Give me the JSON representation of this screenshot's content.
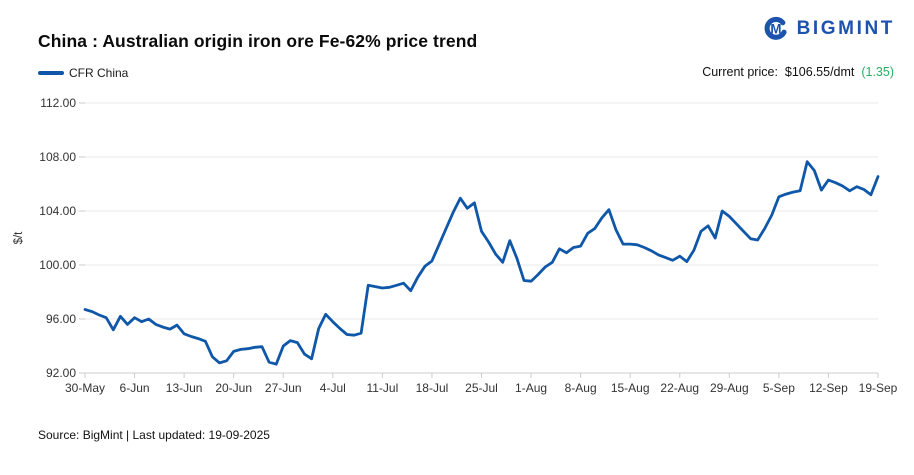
{
  "header": {
    "title": "China : Australian origin iron ore Fe-62% price trend",
    "brand": {
      "name": "BIGMINT",
      "icon": "bigmint-logo-icon",
      "color": "#1d52ad"
    }
  },
  "legend": {
    "series_label": "CFR China",
    "swatch_color": "#0f57a8"
  },
  "current_price": {
    "label": "Current price:",
    "value": "$106.55/dmt",
    "change": "(1.35)",
    "change_color": "#27ae60"
  },
  "chart_data": {
    "type": "line",
    "title": "China : Australian origin iron ore Fe-62% price trend",
    "xlabel": "",
    "ylabel": "$/t",
    "ylim": [
      92,
      112
    ],
    "yticks": [
      92,
      96,
      100,
      104,
      108,
      112
    ],
    "grid": "horizontal",
    "legend_position": "top-left",
    "line_color": "#0f57a8",
    "grid_color": "#e9e9e9",
    "axis_color": "#cccccc",
    "categories": [
      "30-May",
      "6-Jun",
      "13-Jun",
      "20-Jun",
      "27-Jun",
      "4-Jul",
      "11-Jul",
      "18-Jul",
      "25-Jul",
      "1-Aug",
      "8-Aug",
      "15-Aug",
      "22-Aug",
      "29-Aug",
      "5-Sep",
      "12-Sep",
      "19-Sep"
    ],
    "tick_interval": 7,
    "series": [
      {
        "name": "CFR China",
        "values": [
          96.7,
          96.55,
          96.3,
          96.1,
          95.2,
          96.2,
          95.6,
          96.1,
          95.8,
          96.0,
          95.6,
          95.4,
          95.25,
          95.55,
          94.9,
          94.7,
          94.55,
          94.35,
          93.2,
          92.75,
          92.9,
          93.6,
          93.75,
          93.8,
          93.9,
          93.95,
          92.8,
          92.65,
          94.0,
          94.4,
          94.25,
          93.4,
          93.05,
          95.3,
          96.35,
          95.8,
          95.3,
          94.85,
          94.8,
          94.95,
          98.5,
          98.4,
          98.3,
          98.35,
          98.5,
          98.65,
          98.1,
          99.1,
          99.9,
          100.3,
          101.5,
          102.7,
          103.9,
          104.95,
          104.2,
          104.6,
          102.5,
          101.7,
          100.8,
          100.2,
          101.8,
          100.5,
          98.85,
          98.8,
          99.3,
          99.85,
          100.2,
          101.2,
          100.9,
          101.3,
          101.4,
          102.35,
          102.7,
          103.5,
          104.1,
          102.6,
          101.55,
          101.55,
          101.5,
          101.3,
          101.05,
          100.75,
          100.55,
          100.35,
          100.65,
          100.25,
          101.1,
          102.5,
          102.9,
          102.0,
          104.0,
          103.6,
          103.05,
          102.5,
          101.95,
          101.85,
          102.7,
          103.7,
          105.05,
          105.25,
          105.4,
          105.5,
          107.65,
          107.0,
          105.55,
          106.3,
          106.1,
          105.85,
          105.5,
          105.8,
          105.6,
          105.2,
          106.55
        ]
      }
    ]
  },
  "footer": {
    "source": "Source: BigMint | Last updated: 19-09-2025"
  }
}
